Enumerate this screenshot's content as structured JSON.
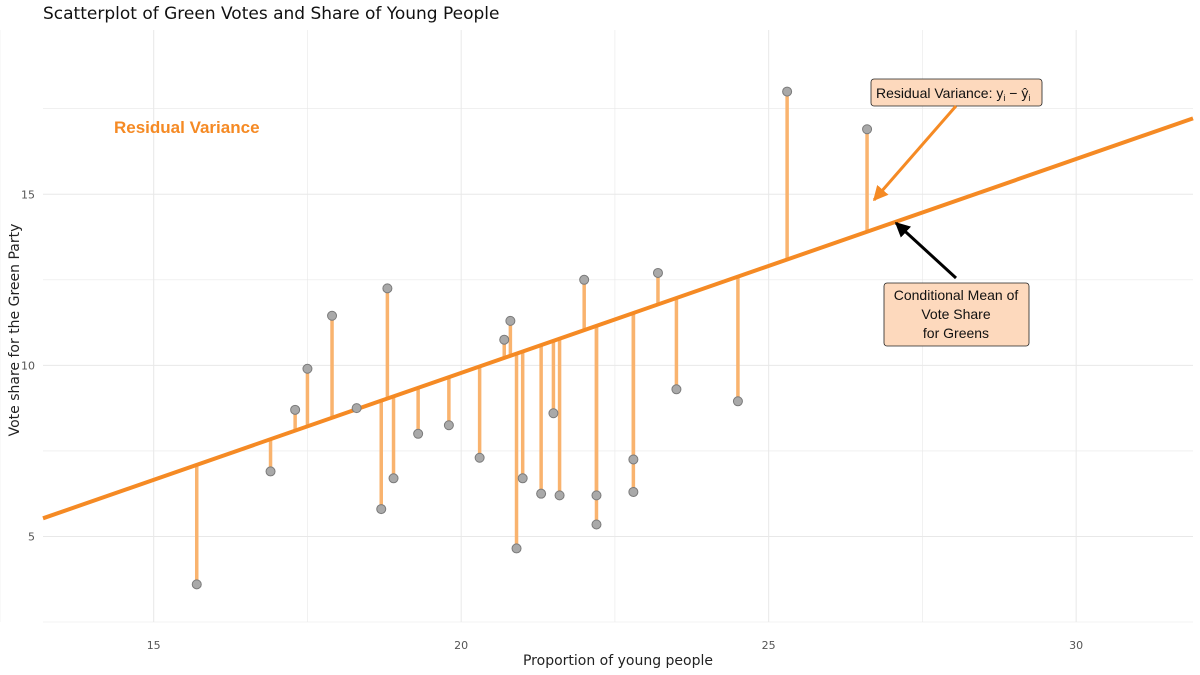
{
  "chart_data": {
    "type": "scatter",
    "title": "Scatterplot of Green Votes and Share of Young People",
    "xlabel": "Proportion of young people",
    "ylabel": "Vote share for the Green Party",
    "xlim": [
      13.2,
      31.9
    ],
    "ylim": [
      2.5,
      19.8
    ],
    "x_ticks": [
      15,
      20,
      25,
      30
    ],
    "y_ticks": [
      5,
      10,
      15
    ],
    "grid": true,
    "regression_line": {
      "intercept": -2.72,
      "slope": 0.625
    },
    "points": [
      {
        "x": 15.7,
        "y": 3.6
      },
      {
        "x": 16.9,
        "y": 6.9
      },
      {
        "x": 17.3,
        "y": 8.7
      },
      {
        "x": 17.5,
        "y": 9.9
      },
      {
        "x": 17.9,
        "y": 11.45
      },
      {
        "x": 18.3,
        "y": 8.75
      },
      {
        "x": 18.7,
        "y": 5.8
      },
      {
        "x": 18.8,
        "y": 12.25
      },
      {
        "x": 18.9,
        "y": 6.7
      },
      {
        "x": 19.3,
        "y": 8.0
      },
      {
        "x": 19.8,
        "y": 8.25
      },
      {
        "x": 20.3,
        "y": 7.3
      },
      {
        "x": 20.7,
        "y": 10.75
      },
      {
        "x": 20.8,
        "y": 11.3
      },
      {
        "x": 20.9,
        "y": 4.65
      },
      {
        "x": 21.0,
        "y": 6.7
      },
      {
        "x": 21.3,
        "y": 6.25
      },
      {
        "x": 21.5,
        "y": 8.6
      },
      {
        "x": 21.6,
        "y": 6.2
      },
      {
        "x": 22.0,
        "y": 12.5
      },
      {
        "x": 22.2,
        "y": 5.35
      },
      {
        "x": 22.2,
        "y": 6.2
      },
      {
        "x": 22.8,
        "y": 7.25
      },
      {
        "x": 22.8,
        "y": 6.3
      },
      {
        "x": 23.2,
        "y": 12.7
      },
      {
        "x": 23.5,
        "y": 9.3
      },
      {
        "x": 24.5,
        "y": 8.95
      },
      {
        "x": 25.3,
        "y": 18.0
      },
      {
        "x": 26.6,
        "y": 16.9
      }
    ],
    "annotations": {
      "residual_title": "Residual Variance",
      "residual_formula": "Residual Variance: ",
      "formula_y": "y",
      "formula_i": "i",
      "formula_minus": " − ",
      "formula_yhat": "ŷ",
      "conditional_mean_lines": [
        "Conditional Mean of",
        "Vote Share",
        "for Greens"
      ]
    },
    "colors": {
      "line": "#f58a24",
      "residual": "#f9b36e",
      "point_fill": "#a9a9a9",
      "point_stroke": "#7a7a7a",
      "label_fill": "#fdd9bd",
      "grid": "#e8e8e8"
    }
  }
}
